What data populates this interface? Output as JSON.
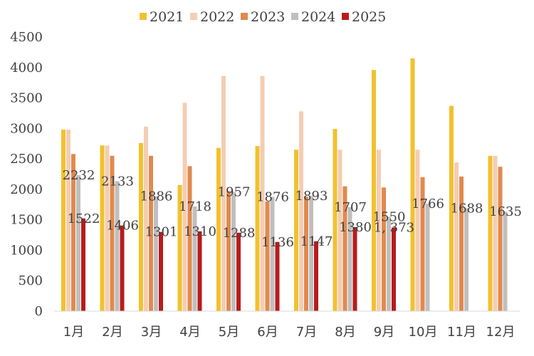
{
  "chart_data": {
    "type": "bar",
    "categories": [
      "1月",
      "2月",
      "3月",
      "4月",
      "5月",
      "6月",
      "7月",
      "8月",
      "9月",
      "10月",
      "11月",
      "12月"
    ],
    "ylim": [
      0,
      4500
    ],
    "yticks": [
      0,
      500,
      1000,
      1500,
      2000,
      2500,
      3000,
      3500,
      4000,
      4500
    ],
    "grid": false,
    "legend_position": "top",
    "series": [
      {
        "name": "2021",
        "color": "#F2C12E",
        "values": [
          2980,
          2720,
          2760,
          2070,
          2680,
          2710,
          2650,
          2990,
          3960,
          4150,
          3370,
          2550
        ]
      },
      {
        "name": "2022",
        "color": "#F4CDB3",
        "values": [
          2980,
          2720,
          3030,
          3420,
          3860,
          3860,
          3280,
          2650,
          2650,
          2650,
          2440,
          2550
        ]
      },
      {
        "name": "2023",
        "color": "#E08A4E",
        "values": [
          2580,
          2550,
          2550,
          2380,
          1970,
          1800,
          1880,
          2050,
          2030,
          2200,
          2210,
          2370
        ]
      },
      {
        "name": "2024",
        "color": "#BFBFBF",
        "values": [
          2232,
          2133,
          1886,
          1718,
          1957,
          1876,
          1893,
          1707,
          1550,
          1766,
          1688,
          1635
        ]
      },
      {
        "name": "2025",
        "color": "#B71C1C",
        "values": [
          1522,
          1406,
          1301,
          1310,
          1288,
          1136,
          1147,
          1380,
          1373,
          null,
          null,
          null
        ]
      }
    ],
    "data_labels": [
      {
        "category": "1月",
        "series": "2024",
        "text": "2232"
      },
      {
        "category": "1月",
        "series": "2025",
        "text": "1522"
      },
      {
        "category": "2月",
        "series": "2024",
        "text": "2133"
      },
      {
        "category": "2月",
        "series": "2025",
        "text": "1406"
      },
      {
        "category": "3月",
        "series": "2024",
        "text": "1886"
      },
      {
        "category": "3月",
        "series": "2025",
        "text": "1301"
      },
      {
        "category": "4月",
        "series": "2024",
        "text": "1718"
      },
      {
        "category": "4月",
        "series": "2025",
        "text": "1310"
      },
      {
        "category": "5月",
        "series": "2024",
        "text": "1957"
      },
      {
        "category": "5月",
        "series": "2025",
        "text": "1288"
      },
      {
        "category": "6月",
        "series": "2024",
        "text": "1876"
      },
      {
        "category": "6月",
        "series": "2025",
        "text": "1136"
      },
      {
        "category": "7月",
        "series": "2024",
        "text": "1893"
      },
      {
        "category": "7月",
        "series": "2025",
        "text": "1147"
      },
      {
        "category": "8月",
        "series": "2024",
        "text": "1707"
      },
      {
        "category": "8月",
        "series": "2025",
        "text": "1380"
      },
      {
        "category": "9月",
        "series": "2024",
        "text": "1550"
      },
      {
        "category": "9月",
        "series": "2025",
        "text": "1, 373"
      },
      {
        "category": "10月",
        "series": "2024",
        "text": "1766"
      },
      {
        "category": "11月",
        "series": "2024",
        "text": "1688"
      },
      {
        "category": "12月",
        "series": "2024",
        "text": "1635"
      }
    ]
  }
}
